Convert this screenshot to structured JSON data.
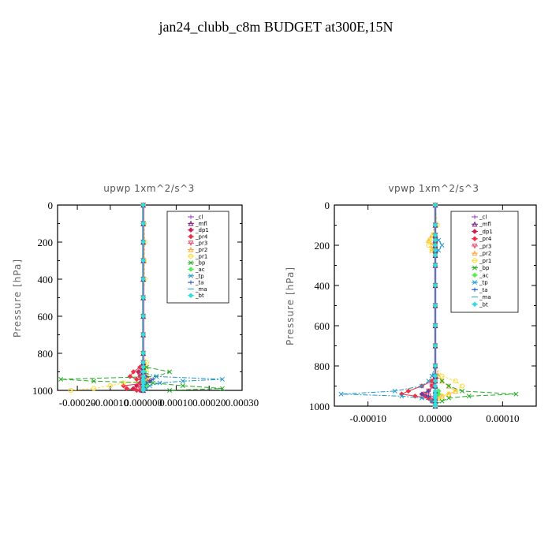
{
  "title": "jan24_clubb_c8m  BUDGET at300E,15N",
  "legend_placement": "top-right",
  "colors": {
    "_cl": "#9933cc",
    "_mfl": "#7a1a7a",
    "_dp1": "#cc2255",
    "_pr4": "#ee3344",
    "_pr3": "#ee4466",
    "_pr2": "#ffaa33",
    "_pr1": "#ffdd33",
    "_bp": "#22aa22",
    "_ac": "#55ee55",
    "_tp": "#2299cc",
    "_ta": "#2255cc",
    "_ma": "#33aacc",
    "_bt": "#33dddd"
  },
  "chart_data": [
    {
      "type": "line",
      "title": "upwp   1xm^2/s^3",
      "xlabel": "",
      "ylabel": "Pressure [hPa]",
      "xlim": [
        -0.00026,
        0.0003
      ],
      "ylim": [
        1000,
        0
      ],
      "y_ticks": [
        0,
        200,
        400,
        600,
        800,
        1000
      ],
      "x_ticks": [
        -0.0002,
        -0.0001,
        0.0,
        0.0001,
        0.0002,
        0.0003
      ],
      "x_tick_labels": [
        "-0.00020",
        "-0.00010",
        "0.000000",
        "0.00010",
        "0.00020",
        "0.00030"
      ],
      "legend": [
        "_cl",
        "_mfl",
        "_dp1",
        "_pr4",
        "_pr3",
        "_pr2",
        "_pr1",
        "_bp",
        "_ac",
        "_tp",
        "_ta",
        "_ma",
        "_bt"
      ],
      "y": [
        0,
        100,
        200,
        300,
        400,
        500,
        600,
        700,
        800,
        850,
        875,
        900,
        925,
        940,
        950,
        960,
        975,
        990,
        1000
      ],
      "series": [
        {
          "name": "_cl",
          "values": [
            0,
            0,
            0,
            0,
            0,
            0,
            0,
            0,
            0,
            0,
            0,
            0,
            0,
            0,
            0,
            0,
            0,
            0,
            0
          ]
        },
        {
          "name": "_mfl",
          "values": [
            0,
            0,
            0,
            0,
            0,
            0,
            0,
            0,
            0,
            0,
            0,
            0,
            0,
            0,
            0,
            0,
            0,
            0,
            0
          ]
        },
        {
          "name": "_dp1",
          "values": [
            0,
            0,
            0,
            0,
            0,
            0,
            0,
            0,
            0,
            0,
            -5e-06,
            -1.5e-05,
            -1e-05,
            -5e-06,
            1e-05,
            -1e-05,
            -2e-05,
            -3e-05,
            -1e-05
          ]
        },
        {
          "name": "_pr4",
          "values": [
            0,
            0,
            0,
            0,
            0,
            0,
            0,
            0,
            0,
            0,
            -1e-05,
            -3e-05,
            -4e-05,
            -2e-05,
            2e-05,
            1e-05,
            -6e-05,
            -5e-05,
            -2e-05
          ]
        },
        {
          "name": "_pr3",
          "values": [
            0,
            0,
            0,
            0,
            0,
            0,
            0,
            0,
            0,
            0,
            0,
            0,
            -1e-05,
            0,
            0,
            0,
            -1e-05,
            -1e-05,
            0
          ]
        },
        {
          "name": "_pr2",
          "values": [
            0,
            0,
            0,
            3e-06,
            0,
            0,
            0,
            0,
            0,
            3e-06,
            0,
            5e-06,
            1e-05,
            5e-06,
            0,
            0,
            0,
            0,
            0
          ]
        },
        {
          "name": "_pr1",
          "values": [
            0,
            3e-06,
            5e-06,
            3e-06,
            5e-06,
            0,
            0,
            0,
            0,
            1e-05,
            5e-06,
            1e-05,
            1e-05,
            1.5e-05,
            0,
            -6e-05,
            -0.0001,
            -0.00015,
            -0.00022
          ]
        },
        {
          "name": "_bp",
          "values": [
            0,
            0,
            0,
            0,
            0,
            0,
            0,
            0,
            0,
            0,
            1e-05,
            8e-05,
            4e-05,
            -0.00025,
            -0.00015,
            3e-05,
            0.00012,
            0.00024,
            8e-05
          ]
        },
        {
          "name": "_ac",
          "values": [
            0,
            0,
            0,
            0,
            0,
            0,
            0,
            0,
            0,
            0,
            0,
            5e-06,
            0,
            0,
            0,
            1e-05,
            1e-05,
            0,
            0
          ]
        },
        {
          "name": "_tp",
          "values": [
            0,
            0,
            0,
            0,
            0,
            0,
            0,
            0,
            0,
            0,
            0,
            -5e-06,
            4e-05,
            0.00024,
            0.00012,
            5e-05,
            2e-05,
            1e-05,
            0
          ]
        },
        {
          "name": "_ta",
          "values": [
            0,
            0,
            0,
            0,
            0,
            0,
            0,
            0,
            0,
            0,
            0,
            0,
            1e-05,
            3e-05,
            2e-05,
            1e-05,
            0,
            0,
            0
          ]
        },
        {
          "name": "_ma",
          "values": [
            0,
            0,
            0,
            0,
            0,
            0,
            0,
            0,
            0,
            0,
            0,
            0,
            0,
            0,
            0,
            0,
            0,
            0,
            0
          ]
        },
        {
          "name": "_bt",
          "values": [
            0,
            0,
            0,
            0,
            0,
            0,
            0,
            0,
            0,
            0,
            0,
            0,
            0,
            0,
            0,
            0,
            0,
            0,
            0
          ]
        }
      ]
    },
    {
      "type": "line",
      "title": "vpwp   1xm^2/s^3",
      "xlabel": "",
      "ylabel": "Pressure [hPa]",
      "xlim": [
        -0.00015,
        0.00015
      ],
      "ylim": [
        1000,
        0
      ],
      "y_ticks": [
        0,
        200,
        400,
        600,
        800,
        1000
      ],
      "x_ticks": [
        -0.0001,
        0.0,
        0.0001
      ],
      "x_tick_labels": [
        "-0.00010",
        "0.00000",
        "0.00010"
      ],
      "legend": [
        "_cl",
        "_mfl",
        "_dp1",
        "_pr4",
        "_pr3",
        "_pr2",
        "_pr1",
        "_bp",
        "_ac",
        "_tp",
        "_ta",
        "_ma",
        "_bt"
      ],
      "y": [
        0,
        100,
        150,
        175,
        200,
        225,
        250,
        300,
        400,
        500,
        600,
        700,
        800,
        850,
        875,
        900,
        925,
        940,
        950,
        960,
        975,
        990,
        1000
      ],
      "series": [
        {
          "name": "_cl",
          "values": [
            0,
            0,
            0,
            0,
            0,
            0,
            0,
            0,
            0,
            0,
            0,
            0,
            0,
            0,
            0,
            0,
            0,
            0,
            0,
            0,
            0,
            0,
            0
          ]
        },
        {
          "name": "_mfl",
          "values": [
            0,
            0,
            0,
            0,
            0,
            0,
            0,
            0,
            0,
            0,
            0,
            0,
            0,
            0,
            0,
            0,
            0,
            0,
            0,
            0,
            0,
            0,
            0
          ]
        },
        {
          "name": "_dp1",
          "values": [
            0,
            0,
            0,
            0,
            0,
            0,
            0,
            0,
            0,
            0,
            0,
            0,
            0,
            0,
            0,
            -5e-06,
            -1e-05,
            -2e-05,
            -1.5e-05,
            -1e-05,
            -5e-06,
            0,
            0
          ]
        },
        {
          "name": "_pr4",
          "values": [
            0,
            0,
            0,
            0,
            0,
            0,
            0,
            0,
            0,
            0,
            0,
            0,
            0,
            0,
            -5e-06,
            -2e-05,
            -4e-05,
            -5e-05,
            -3e-05,
            -1e-05,
            -5e-06,
            0,
            0
          ]
        },
        {
          "name": "_pr3",
          "values": [
            0,
            0,
            0,
            0,
            0,
            0,
            0,
            0,
            0,
            0,
            0,
            0,
            0,
            0,
            0,
            -5e-06,
            -1e-05,
            -1.5e-05,
            -1e-05,
            -5e-06,
            0,
            0,
            0
          ]
        },
        {
          "name": "_pr2",
          "values": [
            0,
            0,
            -5e-06,
            -1e-05,
            -5e-06,
            -5e-06,
            0,
            0,
            0,
            0,
            0,
            0,
            0,
            5e-06,
            1e-05,
            2e-05,
            3e-05,
            2e-05,
            1e-05,
            5e-06,
            0,
            0,
            0
          ]
        },
        {
          "name": "_pr1",
          "values": [
            0,
            3e-06,
            -3e-06,
            -8e-06,
            -1e-05,
            -5e-06,
            0,
            0,
            0,
            0,
            0,
            0,
            0,
            1e-05,
            3e-05,
            4e-05,
            3e-05,
            2e-05,
            1e-05,
            5e-06,
            0,
            0,
            0
          ]
        },
        {
          "name": "_bp",
          "values": [
            0,
            0,
            0,
            0,
            0,
            0,
            0,
            0,
            0,
            0,
            0,
            0,
            0,
            0,
            1e-05,
            2e-05,
            4e-05,
            0.00012,
            5e-05,
            2e-05,
            1e-05,
            0,
            0
          ]
        },
        {
          "name": "_ac",
          "values": [
            0,
            0,
            0,
            0,
            0,
            0,
            0,
            0,
            0,
            0,
            0,
            0,
            0,
            0,
            0,
            0,
            5e-06,
            5e-06,
            0,
            0,
            0,
            0,
            0
          ]
        },
        {
          "name": "_tp",
          "values": [
            0,
            0,
            0,
            5e-06,
            1e-05,
            5e-06,
            0,
            0,
            0,
            0,
            0,
            0,
            0,
            -5e-06,
            -1e-05,
            -2e-05,
            -6e-05,
            -0.00014,
            -5e-05,
            -2e-05,
            -5e-06,
            0,
            0
          ]
        },
        {
          "name": "_ta",
          "values": [
            0,
            0,
            0,
            0,
            0,
            0,
            0,
            0,
            0,
            0,
            0,
            0,
            0,
            0,
            0,
            0,
            -1e-05,
            -2e-05,
            -1e-05,
            0,
            0,
            0,
            0
          ]
        },
        {
          "name": "_ma",
          "values": [
            0,
            0,
            0,
            0,
            0,
            0,
            0,
            0,
            0,
            0,
            0,
            0,
            0,
            0,
            0,
            0,
            0,
            0,
            0,
            0,
            0,
            0,
            0
          ]
        },
        {
          "name": "_bt",
          "values": [
            0,
            0,
            0,
            0,
            0,
            0,
            0,
            0,
            0,
            0,
            0,
            0,
            0,
            0,
            0,
            0,
            0,
            0,
            0,
            0,
            0,
            0,
            0
          ]
        }
      ]
    }
  ]
}
